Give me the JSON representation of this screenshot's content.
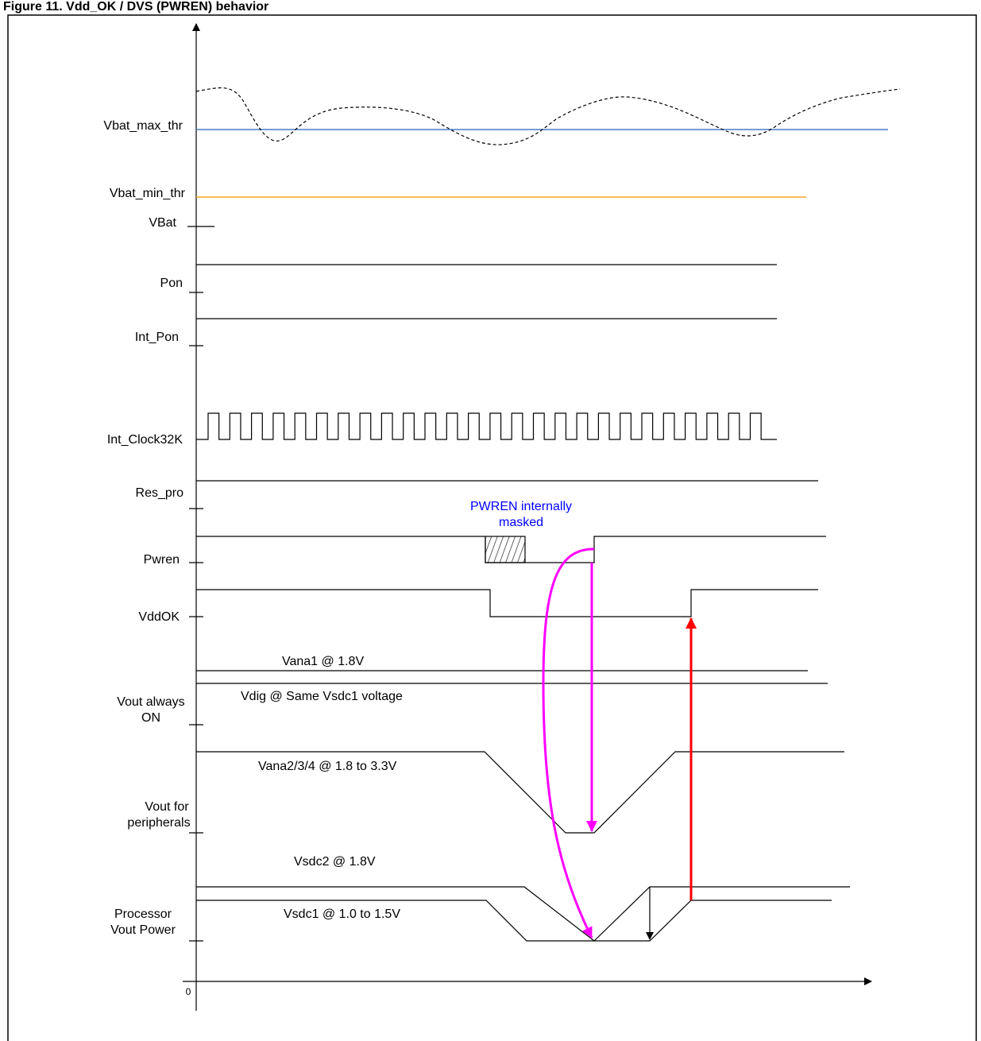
{
  "header": {
    "title": "Figure 11.  Vdd_OK / DVS (PWREN) behavior"
  },
  "signals": [
    {
      "id": "vbat-max",
      "label": "Vbat_max_thr",
      "color": "#4a7cc7"
    },
    {
      "id": "vbat-min",
      "label": "Vbat_min_thr",
      "color": "#f5a623"
    },
    {
      "id": "vbat",
      "label": "VBat"
    },
    {
      "id": "pon",
      "label": "Pon"
    },
    {
      "id": "int-pon",
      "label": "Int_Pon"
    },
    {
      "id": "clock",
      "label": "Int_Clock32K"
    },
    {
      "id": "res-pro",
      "label": "Res_pro"
    },
    {
      "id": "pwren",
      "label": "Pwren"
    },
    {
      "id": "vddok",
      "label": "VddOK"
    },
    {
      "id": "vout-always-on",
      "label": "Vout always ON"
    },
    {
      "id": "vout-peripherals",
      "label": "Vout for peripherals"
    },
    {
      "id": "processor-vout",
      "label": "Processor Vout  Power"
    }
  ],
  "rail_labels": {
    "vana1": "Vana1 @ 1.8V",
    "vdig": "Vdig @ Same Vsdc1 voltage",
    "vana234": "Vana2/3/4 @ 1.8 to 3.3V",
    "vsdc2": "Vsdc2 @ 1.8V",
    "vsdc1": "Vsdc1 @ 1.0 to 1.5V"
  },
  "annotation": {
    "pwren_masked": "PWREN internally masked"
  },
  "axis": {
    "origin": "0"
  },
  "colors": {
    "magenta": "#ff00ff",
    "red": "#ff0000",
    "note": "#0000ff"
  }
}
